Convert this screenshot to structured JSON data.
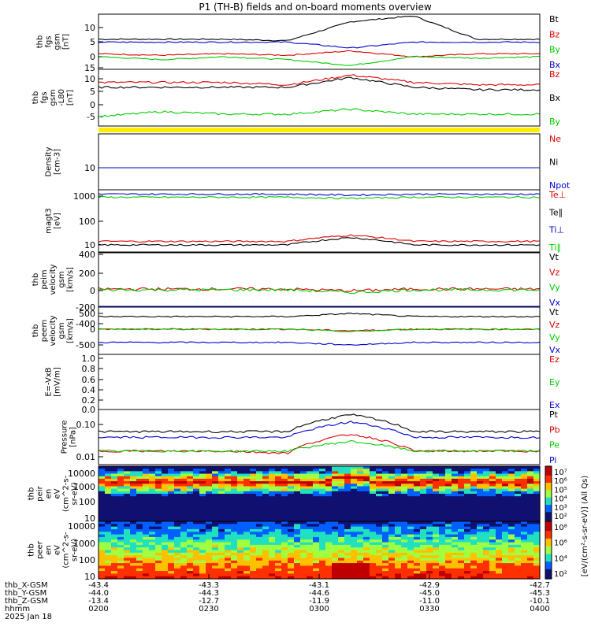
{
  "title": "P1 (TH-B) fields and on-board moments overview",
  "chart_data": [
    {
      "type": "line",
      "ylabel_lines": [
        "thb",
        "fgs",
        "gsm",
        "[nT]"
      ],
      "ticks": [
        "10",
        "5",
        "0"
      ],
      "legend": [
        {
          "label": "Bt",
          "color": "#000000"
        },
        {
          "label": "Bz",
          "color": "#dd0000"
        },
        {
          "label": "By",
          "color": "#00cc00"
        },
        {
          "label": "Bx",
          "color": "#0000cc"
        }
      ],
      "series": [
        {
          "name": "Bt",
          "color": "#000000",
          "levels": [
            6,
            6,
            6,
            5.5,
            12,
            14,
            6,
            6
          ]
        },
        {
          "name": "Bz",
          "color": "#dd0000",
          "levels": [
            1,
            0.5,
            1,
            0.5,
            2,
            0,
            1,
            1
          ]
        },
        {
          "name": "By",
          "color": "#00cc00",
          "levels": [
            0,
            -1,
            0,
            -1,
            -3,
            0,
            -0.5,
            0
          ]
        },
        {
          "name": "Bx",
          "color": "#0000cc",
          "levels": [
            5,
            5,
            5,
            5,
            3,
            5,
            5,
            5
          ]
        }
      ]
    },
    {
      "type": "line",
      "ylabel_lines": [
        "thb",
        "fgs",
        "gsm",
        "-L80",
        "[nT]"
      ],
      "ticks": [
        "15",
        "10",
        "5",
        "0",
        "-5"
      ],
      "legend": [
        {
          "label": "Bz",
          "color": "#dd0000"
        },
        {
          "label": "Bx",
          "color": "#000000"
        },
        {
          "label": "By",
          "color": "#00cc00"
        }
      ],
      "series": [
        {
          "name": "Bz",
          "color": "#dd0000",
          "levels": [
            9,
            9,
            9,
            8,
            12,
            9,
            8,
            8
          ]
        },
        {
          "name": "Bx",
          "color": "#000000",
          "levels": [
            7,
            7,
            7,
            7,
            11,
            7,
            6,
            6
          ]
        },
        {
          "name": "By",
          "color": "#00cc00",
          "levels": [
            -5,
            -3,
            -4,
            -4,
            -2,
            -4,
            -4,
            -4
          ]
        }
      ]
    },
    {
      "type": "line",
      "ylabel_lines": [
        "Density",
        "[cm-3]"
      ],
      "ticks": [
        "10"
      ],
      "legend": [
        {
          "label": "Ne",
          "color": "#dd0000"
        },
        {
          "label": "Ni",
          "color": "#000000"
        },
        {
          "label": "Npot",
          "color": "#0000cc"
        }
      ],
      "series": [
        {
          "name": "Ne",
          "color": "#dd0000",
          "levels": [
            10,
            10,
            10,
            10,
            13,
            10,
            10,
            10
          ]
        },
        {
          "name": "Ni",
          "color": "#000000",
          "levels": [
            5,
            5,
            5,
            4,
            8,
            5,
            5,
            5
          ]
        },
        {
          "name": "Npot",
          "color": "#0000cc",
          "levels": [
            11,
            12,
            11,
            12,
            40,
            11,
            11,
            11
          ]
        }
      ]
    },
    {
      "type": "line",
      "ylabel_lines": [
        "magt3",
        "[eV]"
      ],
      "ticks": [
        "1000",
        "100",
        "10"
      ],
      "legend": [
        {
          "label": "Te⊥",
          "color": "#dd0000"
        },
        {
          "label": "Te∥",
          "color": "#000000"
        },
        {
          "label": "Ti⊥",
          "color": "#0000cc"
        },
        {
          "label": "Ti∥",
          "color": "#00cc00"
        }
      ],
      "series": [
        {
          "name": "Te⊥",
          "color": "#dd0000",
          "levels": [
            14,
            14,
            14,
            14,
            25,
            14,
            14,
            14
          ]
        },
        {
          "name": "Te∥",
          "color": "#000000",
          "levels": [
            10,
            10,
            10,
            10,
            20,
            10,
            10,
            10
          ]
        },
        {
          "name": "Ti⊥",
          "color": "#0000cc",
          "levels": [
            1200,
            1200,
            1200,
            1200,
            1100,
            1200,
            1200,
            1200
          ]
        },
        {
          "name": "Ti∥",
          "color": "#00cc00",
          "levels": [
            900,
            900,
            900,
            900,
            800,
            900,
            900,
            900
          ]
        }
      ]
    },
    {
      "type": "line",
      "ylabel_lines": [
        "thb",
        "peim",
        "velocity",
        "gsm",
        "[km/s]"
      ],
      "ticks": [
        "400",
        "200",
        "0",
        "-200",
        "-400"
      ],
      "legend": [
        {
          "label": "Vt",
          "color": "#000000"
        },
        {
          "label": "Vz",
          "color": "#dd0000"
        },
        {
          "label": "Vy",
          "color": "#00cc00"
        },
        {
          "label": "Vx",
          "color": "#0000cc"
        }
      ],
      "series": [
        {
          "name": "Vt",
          "color": "#000000",
          "levels": [
            450,
            450,
            450,
            450,
            440,
            450,
            450,
            450
          ]
        },
        {
          "name": "Vz",
          "color": "#dd0000",
          "levels": [
            0,
            0,
            0,
            0,
            -20,
            0,
            0,
            0
          ]
        },
        {
          "name": "Vy",
          "color": "#00cc00",
          "levels": [
            -10,
            -10,
            -10,
            -10,
            -40,
            -10,
            -10,
            -10
          ]
        },
        {
          "name": "Vx",
          "color": "#0000cc",
          "levels": [
            -450,
            -450,
            -450,
            -450,
            -430,
            -450,
            -450,
            -450
          ]
        }
      ]
    },
    {
      "type": "line",
      "ylabel_lines": [
        "thb",
        "peem",
        "velocity",
        "gsm",
        "[km/s]"
      ],
      "ticks": [
        "500",
        "0",
        "-500"
      ],
      "legend": [
        {
          "label": "Vt",
          "color": "#000000"
        },
        {
          "label": "Vz",
          "color": "#dd0000"
        },
        {
          "label": "Vy",
          "color": "#00cc00"
        },
        {
          "label": "Vx",
          "color": "#0000cc"
        }
      ],
      "series": [
        {
          "name": "Vt",
          "color": "#000000",
          "levels": [
            400,
            400,
            400,
            400,
            500,
            400,
            400,
            400
          ]
        },
        {
          "name": "Vz",
          "color": "#dd0000",
          "levels": [
            0,
            0,
            0,
            0,
            -50,
            0,
            0,
            0
          ]
        },
        {
          "name": "Vy",
          "color": "#00cc00",
          "levels": [
            0,
            0,
            0,
            0,
            -80,
            0,
            0,
            0
          ]
        },
        {
          "name": "Vx",
          "color": "#0000cc",
          "levels": [
            -420,
            -420,
            -420,
            -420,
            -500,
            -420,
            -420,
            -420
          ]
        }
      ]
    },
    {
      "type": "line",
      "ylabel_lines": [
        "E=-VxB",
        "[mV/m]"
      ],
      "ticks": [
        "1.0",
        "0.8",
        "0.6",
        "0.4",
        "0.2",
        "0.0"
      ],
      "legend": [
        {
          "label": "Ez",
          "color": "#dd0000"
        },
        {
          "label": "Ey",
          "color": "#00cc00"
        },
        {
          "label": "Ex",
          "color": "#0000cc"
        }
      ],
      "series": []
    },
    {
      "type": "line",
      "ylabel_lines": [
        "Pressure",
        "[nPa]"
      ],
      "ticks": [
        "0.10",
        "0.01"
      ],
      "legend": [
        {
          "label": "Pt",
          "color": "#000000"
        },
        {
          "label": "Pb",
          "color": "#dd0000"
        },
        {
          "label": "Pe",
          "color": "#00cc00"
        },
        {
          "label": "Pi",
          "color": "#0000cc"
        }
      ],
      "series": [
        {
          "name": "Pt",
          "color": "#000000",
          "levels": [
            0.06,
            0.06,
            0.06,
            0.06,
            0.2,
            0.06,
            0.06,
            0.06
          ]
        },
        {
          "name": "Pb",
          "color": "#dd0000",
          "levels": [
            0.015,
            0.015,
            0.015,
            0.013,
            0.05,
            0.015,
            0.015,
            0.015
          ]
        },
        {
          "name": "Pe",
          "color": "#00cc00",
          "levels": [
            0.015,
            0.015,
            0.015,
            0.015,
            0.03,
            0.015,
            0.015,
            0.015
          ]
        },
        {
          "name": "Pi",
          "color": "#0000cc",
          "levels": [
            0.04,
            0.04,
            0.04,
            0.04,
            0.12,
            0.04,
            0.04,
            0.04
          ]
        }
      ]
    },
    {
      "type": "heatmap",
      "ylabel_lines": [
        "thb",
        "peir",
        "en",
        "eV",
        "(cm^2-s-",
        "sr-eV)"
      ],
      "ticks": [
        "10000",
        "1000",
        "100",
        "10"
      ]
    },
    {
      "type": "heatmap",
      "ylabel_lines": [
        "thb",
        "peer",
        "en",
        "eV",
        "(cm^2-s-",
        "sr-eV)"
      ],
      "ticks": [
        "10000",
        "1000",
        "100",
        "10"
      ]
    }
  ],
  "colorbar_top": {
    "ticks": [
      "10⁷",
      "10⁶",
      "10⁵",
      "10⁴",
      "10³",
      "10²"
    ]
  },
  "colorbar_bottom": {
    "ticks": [
      "10⁸",
      "10⁶",
      "10⁴",
      "10²"
    ]
  },
  "colorbar_label": "[eV/(cm²-s-sr-eV)] (All Qs)",
  "x_axis": {
    "rows": [
      {
        "label": "thb_X-GSM",
        "values": [
          "-43.4",
          "-43.3",
          "-43.1",
          "-42.9",
          "-42.7"
        ]
      },
      {
        "label": "thb_Y-GSM",
        "values": [
          "-44.0",
          "-44.3",
          "-44.6",
          "-45.0",
          "-45.3"
        ]
      },
      {
        "label": "thb_Z-GSM",
        "values": [
          "-13.4",
          "-12.7",
          "-11.9",
          "-11.0",
          "-10.1"
        ]
      },
      {
        "label": "hhmm",
        "values": [
          "0200",
          "0230",
          "0300",
          "0330",
          "0400"
        ]
      }
    ],
    "date": "2025 Jan 18"
  }
}
